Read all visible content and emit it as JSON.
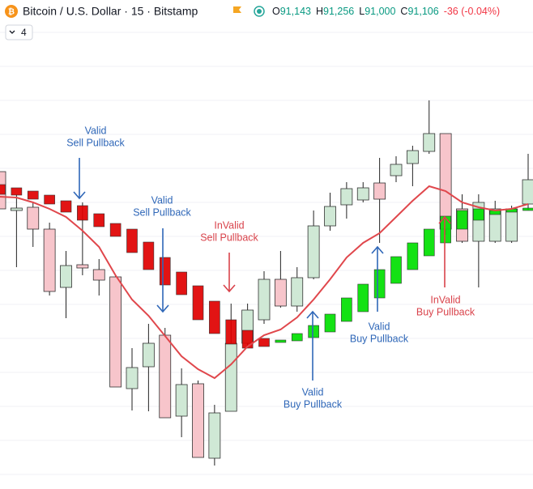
{
  "header": {
    "symbol": "Bitcoin / U.S. Dollar · 15 · Bitstamp",
    "ohlc": [
      {
        "label": "O",
        "value": "91,143"
      },
      {
        "label": "H",
        "value": "91,256"
      },
      {
        "label": "L",
        "value": "91,000"
      },
      {
        "label": "C",
        "value": "91,106"
      }
    ],
    "change": "-36 (-0.04%)",
    "indicator_count": "4"
  },
  "chart_data": {
    "type": "candlestick",
    "categories": [
      null,
      null,
      null,
      null,
      null,
      null,
      null,
      null,
      null,
      null,
      null,
      null,
      null,
      null,
      null,
      null,
      null,
      null,
      null,
      null,
      null,
      null,
      null,
      null,
      null,
      null,
      null,
      null,
      null,
      null,
      null,
      null,
      null
    ],
    "ylim": [
      0,
      604
    ],
    "candles": {
      "up_color": "#cfe8d5",
      "down_color": "#f7c5cb",
      "open": [
        392,
        344,
        348,
        321,
        249,
        277,
        271,
        262,
        124,
        151,
        190,
        90,
        130,
        38,
        96,
        180,
        209,
        259,
        226,
        261,
        325,
        351,
        357,
        378,
        387,
        402,
        417,
        439,
        346,
        306,
        306,
        306,
        352
      ],
      "high": [
        392,
        364,
        354,
        329,
        294,
        354,
        284,
        264,
        174,
        204,
        199,
        149,
        134,
        104,
        229,
        229,
        269,
        294,
        274,
        344,
        366,
        379,
        379,
        409,
        411,
        424,
        480,
        439,
        364,
        364,
        356,
        350,
        414
      ],
      "low": [
        346,
        274,
        299,
        239,
        211,
        264,
        239,
        126,
        97,
        96,
        88,
        64,
        39,
        29,
        96,
        176,
        204,
        224,
        219,
        259,
        319,
        334,
        354,
        304,
        379,
        374,
        414,
        314,
        304,
        249,
        304,
        304,
        344
      ],
      "close": [
        346,
        347,
        321,
        244,
        276,
        273,
        258,
        126,
        150,
        180,
        88,
        129,
        39,
        94,
        180,
        221,
        259,
        226,
        261,
        325,
        349,
        371,
        372,
        358,
        401,
        418,
        439,
        321,
        306,
        354,
        346,
        346,
        382
      ]
    },
    "heikin": {
      "up_color": "#00e000",
      "down_color": "#e00000",
      "open": [
        376,
        372,
        368,
        363,
        356,
        350,
        340,
        328,
        321,
        305,
        286,
        268,
        251,
        232,
        209,
        196,
        186,
        181,
        183,
        187,
        194,
        207,
        219,
        236,
        254,
        271,
        288,
        304,
        321,
        332,
        339,
        342,
        344
      ],
      "close": [
        364,
        363,
        358,
        352,
        342,
        332,
        324,
        312,
        292,
        271,
        252,
        240,
        209,
        192,
        179,
        174,
        176,
        184,
        192,
        202,
        216,
        236,
        253,
        271,
        287,
        304,
        321,
        337,
        344,
        346,
        344,
        346,
        347
      ]
    },
    "line": {
      "color": "#e0474c",
      "values": [
        361,
        360,
        354,
        346,
        336,
        319,
        299,
        264,
        234,
        214,
        189,
        164,
        148,
        137,
        154,
        176,
        190,
        197,
        212,
        234,
        259,
        286,
        304,
        316,
        336,
        356,
        374,
        368,
        354,
        348,
        344,
        346,
        352
      ]
    },
    "annotations": [
      {
        "lines": [
          "Valid",
          "Sell Pullback"
        ],
        "color": "#2f67b8"
      },
      {
        "lines": [
          "Valid",
          "Sell Pullback"
        ],
        "color": "#2f67b8"
      },
      {
        "lines": [
          "InValid",
          "Sell Pullback"
        ],
        "color": "#d9434b"
      },
      {
        "lines": [
          "Valid",
          "Buy Pullback"
        ],
        "color": "#2f67b8"
      },
      {
        "lines": [
          "Valid",
          "Buy Pullback"
        ],
        "color": "#2f67b8"
      },
      {
        "lines": [
          "InValid",
          "Buy Pullback"
        ],
        "color": "#d9434b"
      }
    ]
  }
}
